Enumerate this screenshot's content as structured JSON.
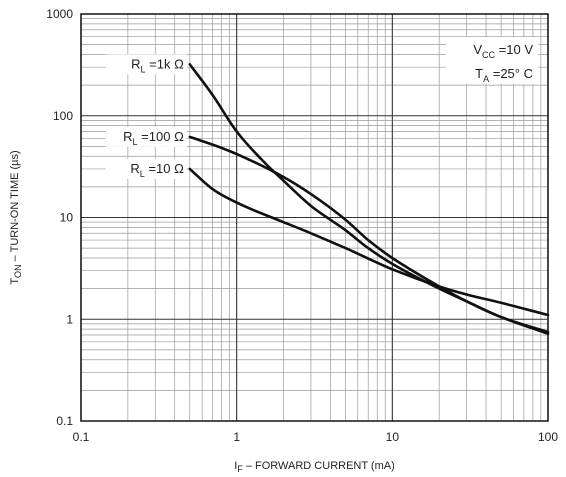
{
  "chart_data": {
    "type": "line",
    "xscale": "log",
    "yscale": "log",
    "xlim": [
      0.1,
      100
    ],
    "ylim": [
      0.1,
      1000
    ],
    "grid": true,
    "xlabel": "I",
    "xlabel_sub": "F",
    "xlabel_rest": " – FORWARD CURRENT (mA)",
    "ylabel": "T",
    "ylabel_sub": "ON",
    "ylabel_rest": " – TURN-ON TIME (µs)",
    "x_ticks": [
      {
        "value": 0.1,
        "label": "0.1"
      },
      {
        "value": 1,
        "label": "1"
      },
      {
        "value": 10,
        "label": "10"
      },
      {
        "value": 100,
        "label": "100"
      }
    ],
    "y_ticks": [
      {
        "value": 0.1,
        "label": "0.1"
      },
      {
        "value": 1,
        "label": "1"
      },
      {
        "value": 10,
        "label": "10"
      },
      {
        "value": 100,
        "label": "100"
      },
      {
        "value": 1000,
        "label": "1000"
      }
    ],
    "conditions": [
      {
        "main": "V",
        "sub": "CC",
        "rest": " =10 V"
      },
      {
        "main": "T",
        "sub": "A",
        "rest": " =25° C"
      }
    ],
    "series": [
      {
        "name_main": "R",
        "name_sub": "L",
        "name_rest": " =1k Ω",
        "label_at": [
          0.5,
          320
        ],
        "points": [
          [
            0.5,
            320
          ],
          [
            0.7,
            160
          ],
          [
            1,
            70
          ],
          [
            1.5,
            35
          ],
          [
            2,
            23
          ],
          [
            3,
            13
          ],
          [
            5,
            7.5
          ],
          [
            7,
            5
          ],
          [
            10,
            3.5
          ],
          [
            20,
            2
          ],
          [
            30,
            1.5
          ],
          [
            50,
            1.05
          ],
          [
            100,
            0.72
          ]
        ]
      },
      {
        "name_main": "R",
        "name_sub": "L",
        "name_rest": " =100 Ω",
        "label_at": [
          0.5,
          62
        ],
        "points": [
          [
            0.5,
            62
          ],
          [
            0.7,
            52
          ],
          [
            1,
            42
          ],
          [
            2,
            25
          ],
          [
            3,
            17
          ],
          [
            5,
            9.5
          ],
          [
            7,
            6
          ],
          [
            10,
            4
          ],
          [
            20,
            2.1
          ],
          [
            30,
            1.5
          ],
          [
            50,
            1.05
          ],
          [
            100,
            0.75
          ]
        ]
      },
      {
        "name_main": "R",
        "name_sub": "L",
        "name_rest": " =10 Ω",
        "label_at": [
          0.5,
          30
        ],
        "points": [
          [
            0.5,
            30
          ],
          [
            0.7,
            19
          ],
          [
            1,
            14
          ],
          [
            2,
            9
          ],
          [
            3,
            7
          ],
          [
            5,
            5
          ],
          [
            10,
            3.1
          ],
          [
            20,
            2.1
          ],
          [
            30,
            1.75
          ],
          [
            50,
            1.45
          ],
          [
            100,
            1.1
          ]
        ]
      }
    ]
  }
}
